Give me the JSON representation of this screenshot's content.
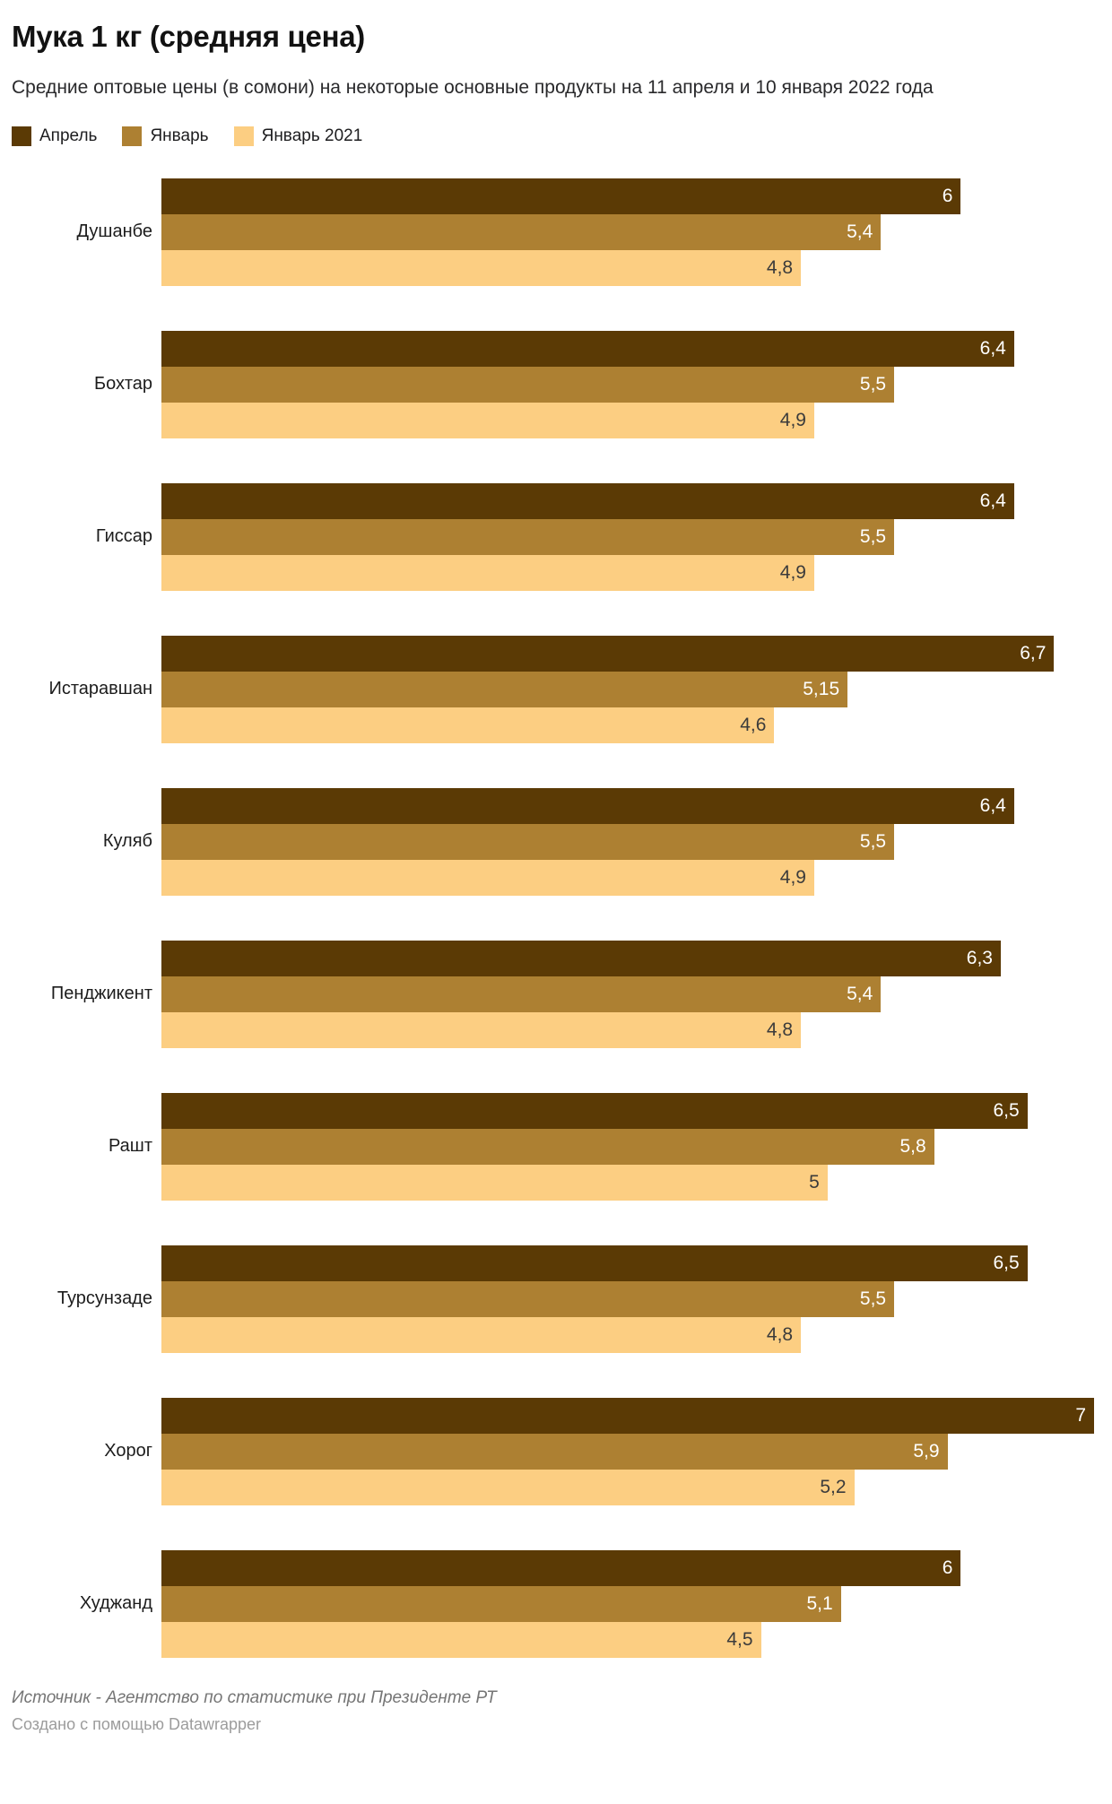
{
  "header": {
    "title": "Мука 1 кг (средняя цена)",
    "subtitle": "Средние оптовые цены (в сомони) на некоторые основные продукты на 11 апреля и 10 января 2022 года"
  },
  "chart_data": {
    "type": "bar",
    "orientation": "horizontal",
    "grid": false,
    "legend_position": "top",
    "xmax": 7,
    "categories": [
      "Душанбе",
      "Бохтар",
      "Гиссар",
      "Истаравшан",
      "Куляб",
      "Пенджикент",
      "Рашт",
      "Турсунзаде",
      "Хорог",
      "Худжанд"
    ],
    "series": [
      {
        "name": "Апрель",
        "color": "#5b3a05",
        "label_color": "#ffffff",
        "values": [
          6,
          6.4,
          6.4,
          6.7,
          6.4,
          6.3,
          6.5,
          6.5,
          7,
          6
        ],
        "labels": [
          "6",
          "6,4",
          "6,4",
          "6,7",
          "6,4",
          "6,3",
          "6,5",
          "6,5",
          "7",
          "6"
        ]
      },
      {
        "name": "Январь",
        "color": "#ad8032",
        "label_color": "#ffffff",
        "values": [
          5.4,
          5.5,
          5.5,
          5.15,
          5.5,
          5.4,
          5.8,
          5.5,
          5.9,
          5.1
        ],
        "labels": [
          "5,4",
          "5,5",
          "5,5",
          "5,15",
          "5,5",
          "5,4",
          "5,8",
          "5,5",
          "5,9",
          "5,1"
        ]
      },
      {
        "name": "Январь 2021",
        "color": "#fcce82",
        "label_color": "#3b3b3b",
        "values": [
          4.8,
          4.9,
          4.9,
          4.6,
          4.9,
          4.8,
          5,
          4.8,
          5.2,
          4.5
        ],
        "labels": [
          "4,8",
          "4,9",
          "4,9",
          "4,6",
          "4,9",
          "4,8",
          "5",
          "4,8",
          "5,2",
          "4,5"
        ]
      }
    ]
  },
  "footer": {
    "source": "Источник - Агентство по статистике при Президенте РТ",
    "created_with": "Создано с помощью",
    "created_with_link": "Datawrapper"
  }
}
